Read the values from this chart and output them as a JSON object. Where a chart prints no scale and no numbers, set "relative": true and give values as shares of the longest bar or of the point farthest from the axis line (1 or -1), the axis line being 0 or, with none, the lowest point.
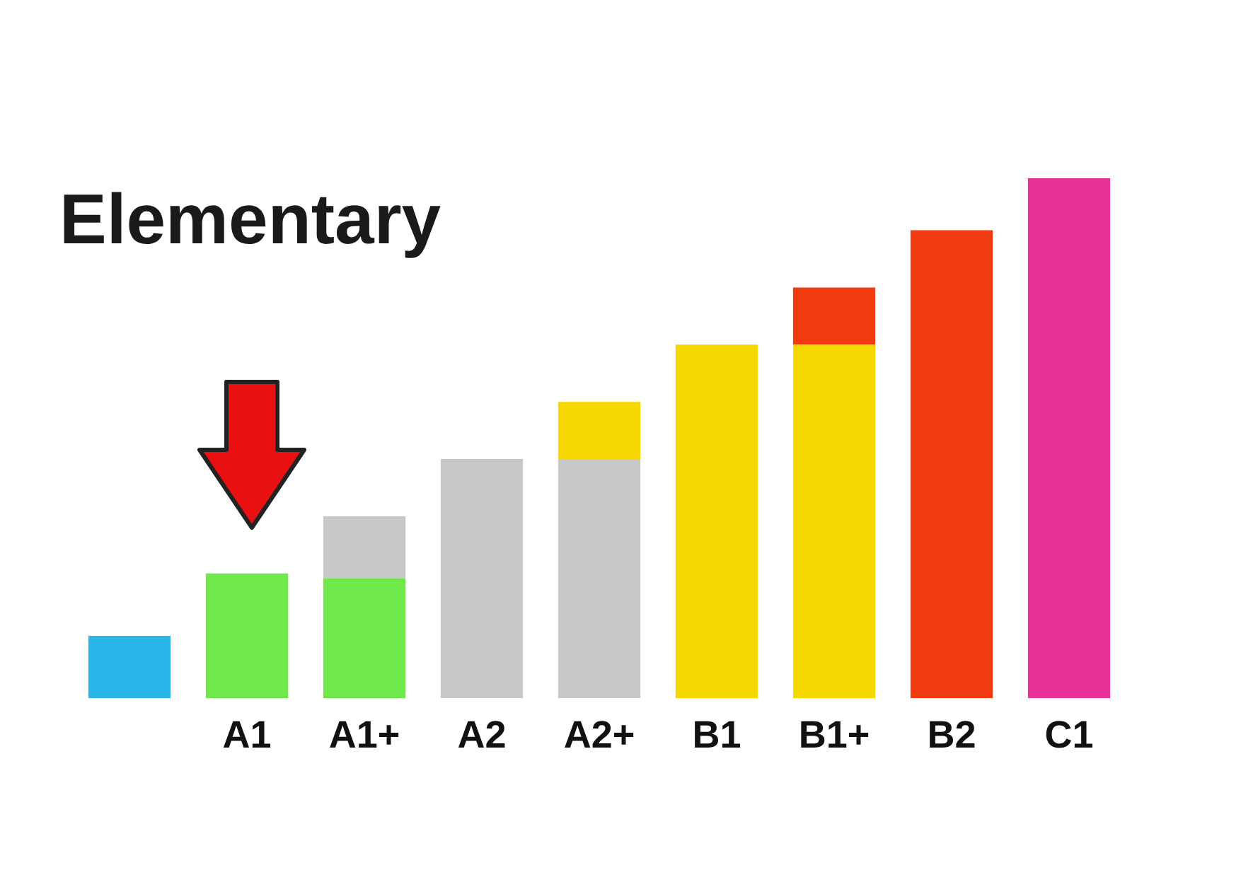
{
  "chart_data": {
    "type": "bar",
    "title": "Elementary",
    "relative": true,
    "stacked": true,
    "categories": [
      null,
      "A1",
      "A1+",
      "A2",
      "A2+",
      "B1",
      "B1+",
      "B2",
      "C1"
    ],
    "series": [
      {
        "values": [
          0.12,
          0.24,
          0.23,
          0.46,
          0.46,
          0.68,
          0.68,
          0.9,
          1
        ],
        "colors": [
          "#29b6e8",
          "#6ee84a",
          "#6ee84a",
          "#c8c8c8",
          "#c8c8c8",
          "#f5d800",
          "#f5d800",
          "#f03a10",
          "#e8329a"
        ]
      },
      {
        "values": [
          null,
          null,
          0.12,
          null,
          0.11,
          null,
          0.11,
          null,
          null
        ],
        "colors": [
          "#c8c8c8",
          "#c8c8c8",
          "#c8c8c8",
          "#f5d800",
          "#f5d800",
          "#f03a10",
          "#f03a10",
          "#f03a10",
          "#f03a10"
        ]
      }
    ]
  }
}
